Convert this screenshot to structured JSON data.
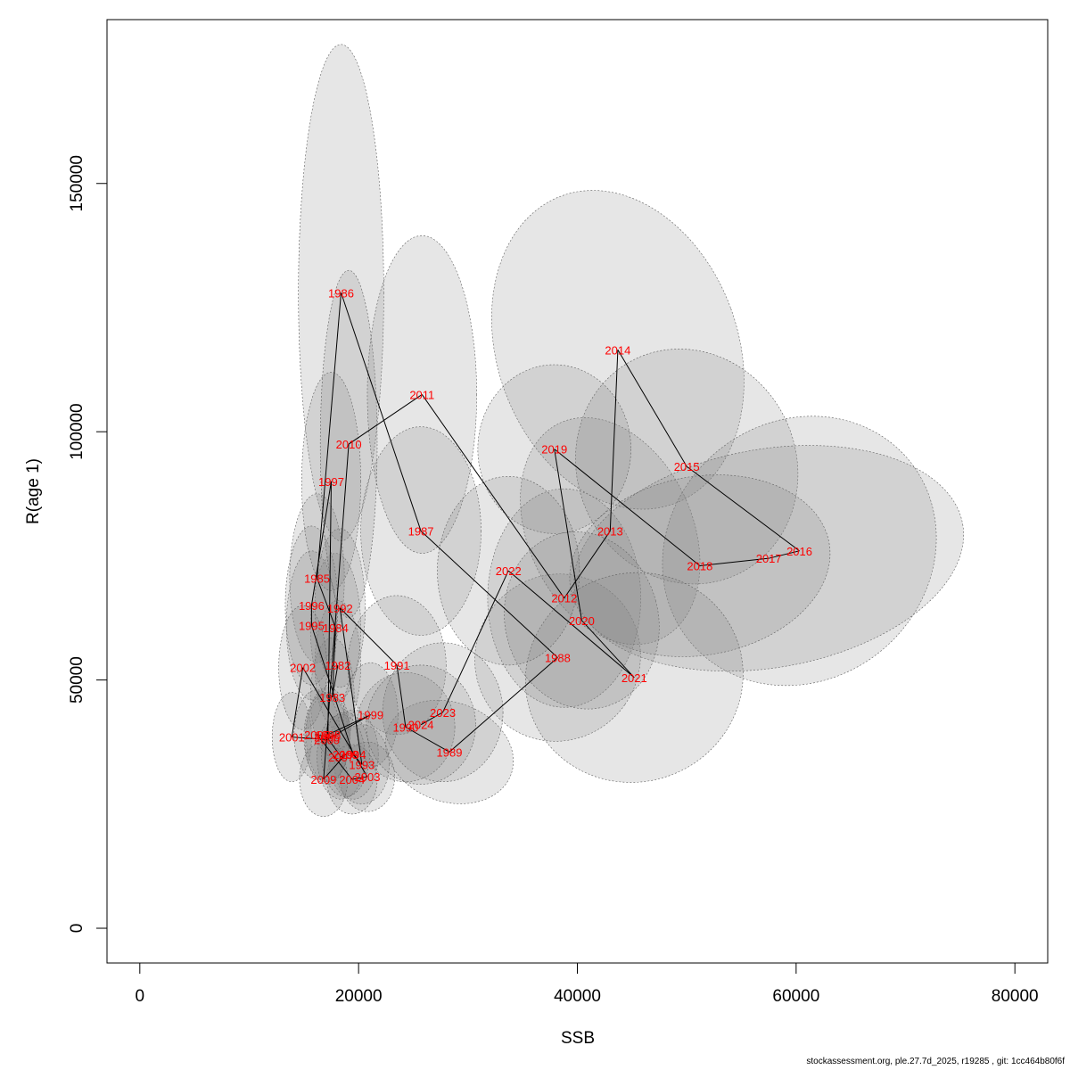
{
  "chart_data": {
    "type": "scatter",
    "title": "",
    "xlabel": "SSB",
    "ylabel": "R(age 1)",
    "xlim": [
      -3000,
      83000
    ],
    "ylim": [
      -7000,
      183000
    ],
    "xticks": [
      0,
      20000,
      40000,
      60000,
      80000
    ],
    "yticks": [
      0,
      50000,
      100000,
      150000
    ],
    "grid": false,
    "colors": {
      "label": "#ff0000",
      "line": "#000000",
      "ellipse_fill": "#808080",
      "ellipse_stroke": "#606060",
      "frame": "#000000"
    },
    "points": [
      {
        "year": "1982",
        "x": 18100,
        "y": 53000,
        "ex": 2100,
        "ey": 13000,
        "rot": 0
      },
      {
        "year": "1983",
        "x": 17600,
        "y": 46500,
        "ex": 2000,
        "ey": 12000,
        "rot": 0
      },
      {
        "year": "1984",
        "x": 17900,
        "y": 60500,
        "ex": 2300,
        "ey": 15000,
        "rot": 0
      },
      {
        "year": "1985",
        "x": 16200,
        "y": 70500,
        "ex": 2500,
        "ey": 17000,
        "rot": 0
      },
      {
        "year": "1986",
        "x": 18400,
        "y": 128000,
        "ex": 3900,
        "ey": 50000,
        "rot": 0
      },
      {
        "year": "1987",
        "x": 25700,
        "y": 80000,
        "ex": 5500,
        "ey": 21000,
        "rot": 0
      },
      {
        "year": "1988",
        "x": 38200,
        "y": 54500,
        "ex": 7500,
        "ey": 17000,
        "rot": -35
      },
      {
        "year": "1989",
        "x": 28300,
        "y": 35500,
        "ex": 6000,
        "ey": 10000,
        "rot": -20
      },
      {
        "year": "1990",
        "x": 24300,
        "y": 40500,
        "ex": 4500,
        "ey": 11000,
        "rot": 0
      },
      {
        "year": "1991",
        "x": 23500,
        "y": 53000,
        "ex": 4500,
        "ey": 14000,
        "rot": 0
      },
      {
        "year": "1992",
        "x": 18300,
        "y": 64500,
        "ex": 2300,
        "ey": 16000,
        "rot": 0
      },
      {
        "year": "1993",
        "x": 20300,
        "y": 33000,
        "ex": 2500,
        "ey": 8000,
        "rot": 0
      },
      {
        "year": "1994",
        "x": 19500,
        "y": 35000,
        "ex": 2300,
        "ey": 9000,
        "rot": 0
      },
      {
        "year": "1995",
        "x": 15700,
        "y": 61000,
        "ex": 2300,
        "ey": 15000,
        "rot": 0
      },
      {
        "year": "1996",
        "x": 15700,
        "y": 65000,
        "ex": 2400,
        "ey": 16000,
        "rot": 0
      },
      {
        "year": "1997",
        "x": 17500,
        "y": 90000,
        "ex": 2700,
        "ey": 22000,
        "rot": 0
      },
      {
        "year": "1998",
        "x": 17200,
        "y": 39000,
        "ex": 2000,
        "ey": 9500,
        "rot": 0
      },
      {
        "year": "1999",
        "x": 21100,
        "y": 43000,
        "ex": 2500,
        "ey": 10500,
        "rot": 0
      },
      {
        "year": "2000",
        "x": 17100,
        "y": 38000,
        "ex": 2000,
        "ey": 9000,
        "rot": 0
      },
      {
        "year": "2001",
        "x": 13900,
        "y": 38500,
        "ex": 1800,
        "ey": 9000,
        "rot": 0
      },
      {
        "year": "2002",
        "x": 14900,
        "y": 52500,
        "ex": 2200,
        "ey": 12500,
        "rot": 0
      },
      {
        "year": "2003",
        "x": 20800,
        "y": 30500,
        "ex": 2500,
        "ey": 7000,
        "rot": 0
      },
      {
        "year": "2004",
        "x": 19400,
        "y": 30000,
        "ex": 2300,
        "ey": 7000,
        "rot": 0
      },
      {
        "year": "2005",
        "x": 16200,
        "y": 39000,
        "ex": 2100,
        "ey": 9000,
        "rot": 0
      },
      {
        "year": "2006",
        "x": 17100,
        "y": 38500,
        "ex": 2100,
        "ey": 9000,
        "rot": 0
      },
      {
        "year": "2007",
        "x": 18400,
        "y": 34500,
        "ex": 2200,
        "ey": 8500,
        "rot": 0
      },
      {
        "year": "2008",
        "x": 18800,
        "y": 35000,
        "ex": 2200,
        "ey": 8500,
        "rot": 0
      },
      {
        "year": "2009",
        "x": 16800,
        "y": 30000,
        "ex": 2200,
        "ey": 7500,
        "rot": 0
      },
      {
        "year": "2010",
        "x": 19100,
        "y": 97500,
        "ex": 2600,
        "ey": 35000,
        "rot": 0
      },
      {
        "year": "2011",
        "x": 25800,
        "y": 107500,
        "ex": 5000,
        "ey": 32000,
        "rot": 0
      },
      {
        "year": "2012",
        "x": 38800,
        "y": 66500,
        "ex": 7000,
        "ey": 22000,
        "rot": 0
      },
      {
        "year": "2013",
        "x": 43000,
        "y": 80000,
        "ex": 7500,
        "ey": 24000,
        "rot": 25
      },
      {
        "year": "2014",
        "x": 43700,
        "y": 116500,
        "ex": 11000,
        "ey": 33000,
        "rot": 20
      },
      {
        "year": "2015",
        "x": 50000,
        "y": 93000,
        "ex": 10000,
        "ey": 24000,
        "rot": 25
      },
      {
        "year": "2016",
        "x": 60300,
        "y": 76000,
        "ex": 13000,
        "ey": 26000,
        "rot": 40
      },
      {
        "year": "2017",
        "x": 57500,
        "y": 74500,
        "ex": 18000,
        "ey": 22000,
        "rot": 10
      },
      {
        "year": "2018",
        "x": 51200,
        "y": 73000,
        "ex": 12000,
        "ey": 18000,
        "rot": 10
      },
      {
        "year": "2019",
        "x": 37900,
        "y": 96500,
        "ex": 7000,
        "ey": 17000,
        "rot": 0
      },
      {
        "year": "2020",
        "x": 40400,
        "y": 62000,
        "ex": 7000,
        "ey": 18000,
        "rot": 15
      },
      {
        "year": "2021",
        "x": 45200,
        "y": 50500,
        "ex": 10000,
        "ey": 21000,
        "rot": 20
      },
      {
        "year": "2022",
        "x": 33700,
        "y": 72000,
        "ex": 6500,
        "ey": 19000,
        "rot": 0
      },
      {
        "year": "2023",
        "x": 27700,
        "y": 43500,
        "ex": 5500,
        "ey": 14000,
        "rot": 0
      },
      {
        "year": "2024",
        "x": 25700,
        "y": 41000,
        "ex": 5000,
        "ey": 12000,
        "rot": 0
      }
    ]
  },
  "footer": {
    "text": "stockassessment.org, ple.27.7d_2025, r19285 , git: 1cc464b80f6f"
  }
}
